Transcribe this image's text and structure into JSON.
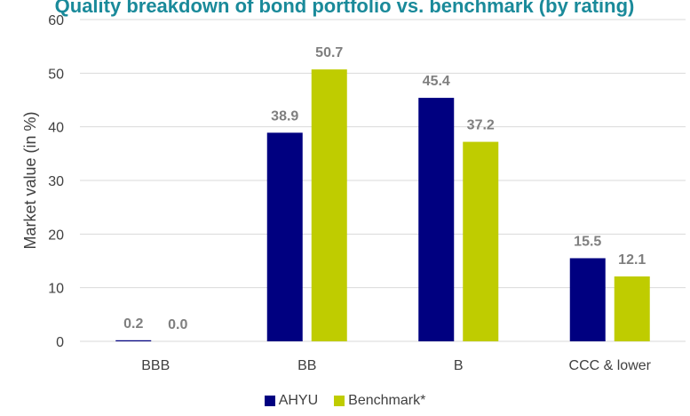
{
  "chart_data": {
    "type": "bar",
    "title": "Quality breakdown of bond portfolio vs. benchmark (by rating)",
    "ylabel": "Market value (in %)",
    "xlabel": "",
    "ylim": [
      0,
      60
    ],
    "yticks": [
      0,
      10,
      20,
      30,
      40,
      50,
      60
    ],
    "categories": [
      "BBB",
      "BB",
      "B",
      "CCC & lower"
    ],
    "series": [
      {
        "name": "AHYU",
        "color": "#000080",
        "values": [
          0.2,
          38.9,
          45.4,
          15.5
        ],
        "labels": [
          "0.2",
          "38.9",
          "45.4",
          "15.5"
        ]
      },
      {
        "name": "Benchmark*",
        "color": "#bfcc00",
        "values": [
          0.0,
          50.7,
          37.2,
          12.1
        ],
        "labels": [
          "0.0",
          "50.7",
          "37.2",
          "12.1"
        ]
      }
    ],
    "grid": true,
    "legend_position": "bottom"
  }
}
